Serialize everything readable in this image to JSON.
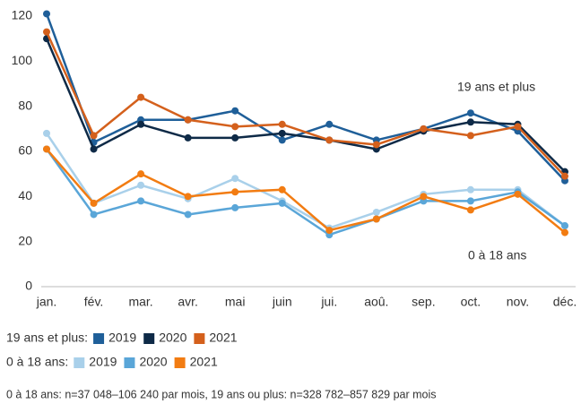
{
  "chart_data": {
    "type": "line",
    "categories": [
      "jan.",
      "fév.",
      "mar.",
      "avr.",
      "mai",
      "juin",
      "jui.",
      "aoû.",
      "sep.",
      "oct.",
      "nov.",
      "déc."
    ],
    "ylim": [
      0,
      120
    ],
    "yticks": [
      0,
      20,
      40,
      60,
      80,
      100,
      120
    ],
    "groups": [
      {
        "name": "19 ans et plus:",
        "annotation": "19 ans et plus",
        "series": [
          {
            "name": "2019",
            "color": "#1f5f99",
            "values": [
              121,
              64,
              74,
              74,
              78,
              65,
              72,
              65,
              70,
              77,
              69,
              47
            ]
          },
          {
            "name": "2020",
            "color": "#0e2a47",
            "values": [
              110,
              61,
              72,
              66,
              66,
              68,
              65,
              61,
              69,
              73,
              72,
              51
            ]
          },
          {
            "name": "2021",
            "color": "#d4601c",
            "values": [
              113,
              67,
              84,
              74,
              71,
              72,
              65,
              63,
              70,
              67,
              71,
              49
            ]
          }
        ]
      },
      {
        "name": "0 à 18 ans:",
        "annotation": "0 à 18 ans",
        "series": [
          {
            "name": "2019",
            "color": "#a9d0ea",
            "values": [
              68,
              37,
              45,
              39,
              48,
              38,
              26,
              33,
              41,
              43,
              43,
              27
            ]
          },
          {
            "name": "2020",
            "color": "#5aa6d8",
            "values": [
              61,
              32,
              38,
              32,
              35,
              37,
              23,
              30,
              38,
              38,
              42,
              27
            ]
          },
          {
            "name": "2021",
            "color": "#f27c12",
            "values": [
              61,
              37,
              50,
              40,
              42,
              43,
              25,
              30,
              40,
              34,
              41,
              24
            ]
          }
        ]
      }
    ],
    "note": "0 à 18 ans: n=37 048–106 240 par mois, 19 ans ou plus: n=328 782–857 829 par mois"
  }
}
